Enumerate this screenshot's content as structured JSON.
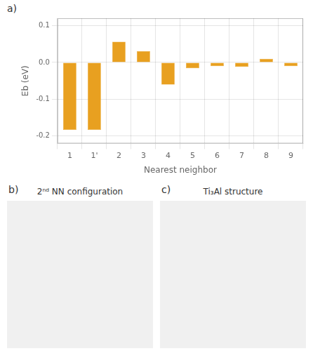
{
  "chart_data": [
    {
      "type": "bar",
      "annotations": [
        "a)"
      ],
      "xlabel": "Nearest neighbor",
      "ylabel": "Eb (eV)",
      "categories": [
        "1",
        "1'",
        "2",
        "3",
        "4",
        "5",
        "6",
        "7",
        "8",
        "9"
      ],
      "values": [
        -0.183,
        -0.183,
        0.056,
        0.031,
        -0.06,
        -0.016,
        -0.01,
        -0.012,
        0.01,
        -0.01
      ],
      "color": "#E8A020",
      "ylim": [
        -0.22,
        0.12
      ],
      "yticks": [
        -0.2,
        -0.1,
        {
          "value": 0,
          "label": "0.0"
        },
        0.1
      ],
      "grid": true
    },
    {
      "type": "image",
      "annotations": [
        "b)"
      ],
      "title": "2ⁿᵈ NN configuration"
    },
    {
      "type": "image",
      "annotations": [
        "c)"
      ],
      "title": "Ti₃Al structure"
    }
  ]
}
